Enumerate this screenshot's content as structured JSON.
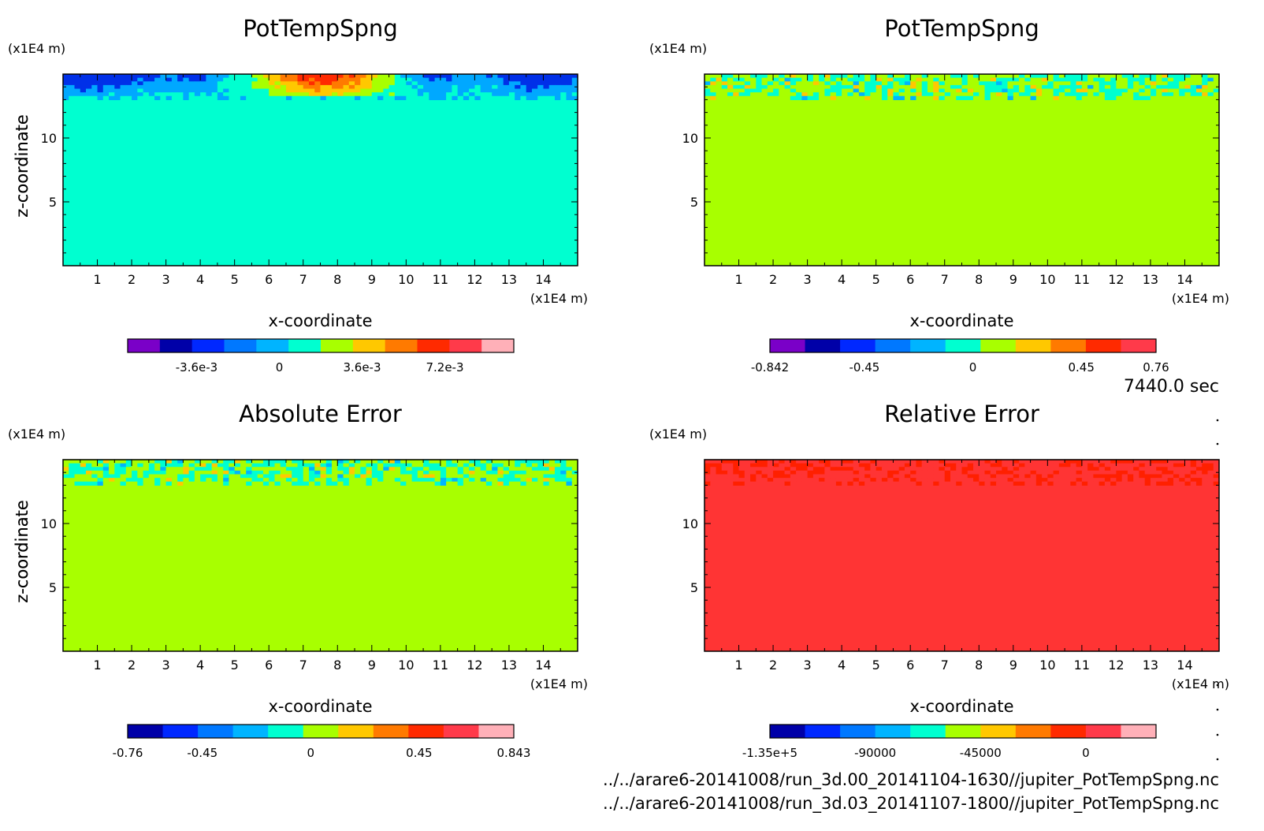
{
  "footer": {
    "time_label": "7440.0 sec",
    "files": [
      "../../arare6-20141008/run_3d.00_20141104-1630//jupiter_PotTempSpng.nc",
      "../../arare6-20141008/run_3d.03_20141107-1800//jupiter_PotTempSpng.nc"
    ]
  },
  "chart_data": [
    {
      "type": "heatmap",
      "title": "PotTempSpng",
      "xlabel": "x-coordinate",
      "ylabel": "z-coordinate",
      "xunit": "(x1E4 m)",
      "yunit": "(x1E4 m)",
      "xlim": [
        0,
        15
      ],
      "ylim": [
        0,
        15
      ],
      "xticks": [
        "1",
        "2",
        "3",
        "4",
        "5",
        "6",
        "7",
        "8",
        "9",
        "10",
        "11",
        "12",
        "13",
        "14"
      ],
      "yticks": [
        "5",
        "10"
      ],
      "background_color": "#00ffd0",
      "top_layer": {
        "z_range": [
          13,
          15
        ],
        "colors": [
          "#0030e8",
          "#00a8ff",
          "#00ffd0",
          "#a8ff00",
          "#ffc800",
          "#ff7a00",
          "#ff2a00"
        ]
      },
      "colorbar": {
        "colors": [
          "#7a00c8",
          "#0000a8",
          "#0028ff",
          "#0078ff",
          "#00b4ff",
          "#00ffd0",
          "#a8ff00",
          "#ffc800",
          "#ff7a00",
          "#ff2a00",
          "#ff3a4a",
          "#ffb0b8"
        ],
        "tick_labels": [
          "-3.6e-3",
          "0",
          "3.6e-3",
          "7.2e-3"
        ]
      }
    },
    {
      "type": "heatmap",
      "title": "PotTempSpng",
      "xlabel": "x-coordinate",
      "ylabel": "z-coordinate",
      "xunit": "(x1E4 m)",
      "yunit": "(x1E4 m)",
      "xlim": [
        0,
        15
      ],
      "ylim": [
        0,
        15
      ],
      "xticks": [
        "1",
        "2",
        "3",
        "4",
        "5",
        "6",
        "7",
        "8",
        "9",
        "10",
        "11",
        "12",
        "13",
        "14"
      ],
      "yticks": [
        "5",
        "10"
      ],
      "background_color": "#a8ff00",
      "top_layer": {
        "z_range": [
          13,
          15
        ],
        "colors": [
          "#00ffd0",
          "#a8ff00",
          "#ffc800",
          "#00b4ff"
        ]
      },
      "colorbar": {
        "colors": [
          "#7a00c8",
          "#0000a8",
          "#0028ff",
          "#0078ff",
          "#00b4ff",
          "#00ffd0",
          "#a8ff00",
          "#ffc800",
          "#ff7a00",
          "#ff2a00",
          "#ff3a4a"
        ],
        "tick_labels": [
          "-0.842",
          "-0.45",
          "0",
          "0.45",
          "0.76"
        ]
      }
    },
    {
      "type": "heatmap",
      "title": "Absolute Error",
      "xlabel": "x-coordinate",
      "ylabel": "z-coordinate",
      "xunit": "(x1E4 m)",
      "yunit": "(x1E4 m)",
      "xlim": [
        0,
        15
      ],
      "ylim": [
        0,
        15
      ],
      "xticks": [
        "1",
        "2",
        "3",
        "4",
        "5",
        "6",
        "7",
        "8",
        "9",
        "10",
        "11",
        "12",
        "13",
        "14"
      ],
      "yticks": [
        "5",
        "10"
      ],
      "background_color": "#a8ff00",
      "top_layer": {
        "z_range": [
          13,
          15
        ],
        "colors": [
          "#00ffd0",
          "#a8ff00",
          "#ffc800",
          "#00b4ff"
        ]
      },
      "colorbar": {
        "colors": [
          "#0000a8",
          "#0028ff",
          "#0078ff",
          "#00b4ff",
          "#00ffd0",
          "#a8ff00",
          "#ffc800",
          "#ff7a00",
          "#ff2a00",
          "#ff3a4a",
          "#ffb0b8"
        ],
        "tick_labels": [
          "-0.76",
          "-0.45",
          "0",
          "0.45",
          "0.843"
        ]
      }
    },
    {
      "type": "heatmap",
      "title": "Relative Error",
      "xlabel": "x-coordinate",
      "ylabel": "z-coordinate",
      "xunit": "(x1E4 m)",
      "yunit": "(x1E4 m)",
      "xlim": [
        0,
        15
      ],
      "ylim": [
        0,
        15
      ],
      "xticks": [
        "1",
        "2",
        "3",
        "4",
        "5",
        "6",
        "7",
        "8",
        "9",
        "10",
        "11",
        "12",
        "13",
        "14"
      ],
      "yticks": [
        "5",
        "10"
      ],
      "background_color": "#ff3434",
      "top_layer": {
        "z_range": [
          13,
          15
        ],
        "colors": [
          "#ff3434",
          "#ff2000"
        ]
      },
      "colorbar": {
        "colors": [
          "#0000a8",
          "#0028ff",
          "#0078ff",
          "#00b4ff",
          "#00ffd0",
          "#a8ff00",
          "#ffc800",
          "#ff7a00",
          "#ff2a00",
          "#ff3a4a",
          "#ffb0b8"
        ],
        "tick_labels": [
          "-1.35e+5",
          "-90000",
          "-45000",
          "0"
        ]
      }
    }
  ]
}
